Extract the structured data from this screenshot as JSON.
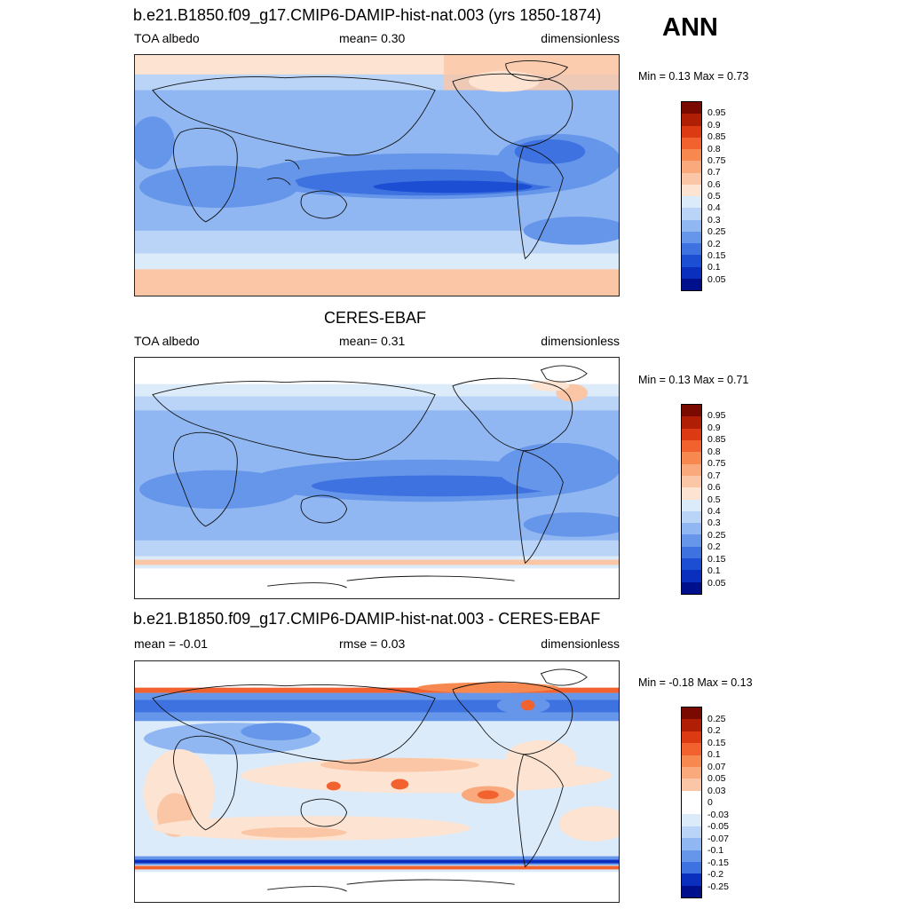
{
  "season": "ANN",
  "panels": [
    {
      "id": "model",
      "title": "b.e21.B1850.f09_g17.CMIP6-DAMIP-hist-nat.003 (yrs 1850-1874)",
      "left_label": "TOA albedo",
      "center_label": "mean=   0.30",
      "right_label": "dimensionless",
      "minmax": "Min =   0.13 Max =   0.73",
      "colorbar_ticks": [
        "0.95",
        "0.9",
        "0.85",
        "0.8",
        "0.75",
        "0.7",
        "0.6",
        "0.5",
        "0.4",
        "0.3",
        "0.25",
        "0.2",
        "0.15",
        "0.1",
        "0.05"
      ],
      "colorbar_colors": [
        "#7a0a00",
        "#b01e05",
        "#db3a12",
        "#f2622f",
        "#f7884f",
        "#f9a97c",
        "#fbc6a5",
        "#fde4d2",
        "#dcebfa",
        "#b9d4f7",
        "#90b7f2",
        "#6696ea",
        "#3d72e0",
        "#1b4ed3",
        "#0a2fbe",
        "#000f8c"
      ]
    },
    {
      "id": "obs",
      "title": "CERES-EBAF",
      "left_label": "TOA albedo",
      "center_label": "mean=   0.31",
      "right_label": "dimensionless",
      "minmax": "Min =   0.13 Max =   0.71",
      "colorbar_ticks": [
        "0.95",
        "0.9",
        "0.85",
        "0.8",
        "0.75",
        "0.7",
        "0.6",
        "0.5",
        "0.4",
        "0.3",
        "0.25",
        "0.2",
        "0.15",
        "0.1",
        "0.05"
      ],
      "colorbar_colors": [
        "#7a0a00",
        "#b01e05",
        "#db3a12",
        "#f2622f",
        "#f7884f",
        "#f9a97c",
        "#fbc6a5",
        "#fde4d2",
        "#dcebfa",
        "#b9d4f7",
        "#90b7f2",
        "#6696ea",
        "#3d72e0",
        "#1b4ed3",
        "#0a2fbe",
        "#000f8c"
      ]
    },
    {
      "id": "diff",
      "title": "b.e21.B1850.f09_g17.CMIP6-DAMIP-hist-nat.003 - CERES-EBAF",
      "left_label": "mean =  -0.01",
      "center_label": "rmse =   0.03",
      "right_label": "dimensionless",
      "minmax": "Min =  -0.18 Max =   0.13",
      "colorbar_ticks": [
        "0.25",
        "0.2",
        "0.15",
        "0.1",
        "0.07",
        "0.05",
        "0.03",
        "0",
        "-0.03",
        "-0.05",
        "-0.07",
        "-0.1",
        "-0.15",
        "-0.2",
        "-0.25"
      ],
      "colorbar_colors": [
        "#7a0a00",
        "#b01e05",
        "#db3a12",
        "#f2622f",
        "#f7884f",
        "#f9a97c",
        "#fbc6a5",
        "#ffffff",
        "#ffffff",
        "#dcebfa",
        "#b9d4f7",
        "#90b7f2",
        "#6696ea",
        "#3d72e0",
        "#0a2fbe",
        "#000f8c"
      ]
    }
  ]
}
